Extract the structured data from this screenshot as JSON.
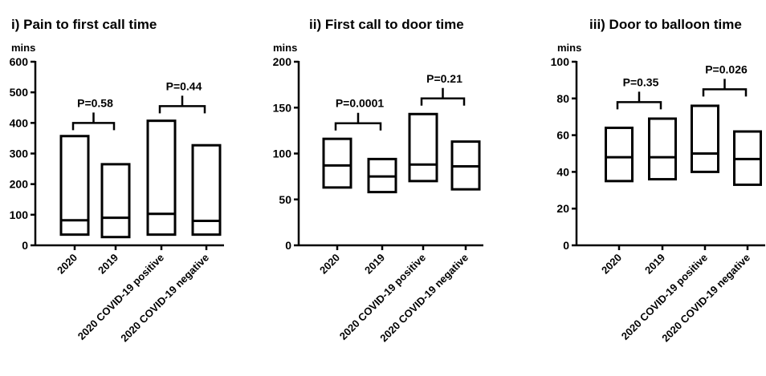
{
  "chart_data": [
    {
      "type": "box",
      "title": "i) Pain to first call time",
      "ylabel": "mins",
      "ylim": [
        0,
        600
      ],
      "yticks": [
        "0",
        "100",
        "200",
        "300",
        "400",
        "500",
        "600"
      ],
      "categories": [
        "2020",
        "2019",
        "2020 COVID-19 positive",
        "2020 COVID-19 negative"
      ],
      "boxes": [
        {
          "q1": 35,
          "median": 82,
          "q3": 357
        },
        {
          "q1": 27,
          "median": 90,
          "q3": 265
        },
        {
          "q1": 35,
          "median": 103,
          "q3": 407
        },
        {
          "q1": 35,
          "median": 80,
          "q3": 327
        }
      ],
      "annotations": [
        {
          "text": "P=0.58",
          "between": [
            0,
            1
          ],
          "bracket_y": 400
        },
        {
          "text": "P=0.44",
          "between": [
            2,
            3
          ],
          "bracket_y": 455
        }
      ]
    },
    {
      "type": "box",
      "title": "ii) First call to door time",
      "ylabel": "mins",
      "ylim": [
        0,
        200
      ],
      "yticks": [
        "0",
        "50",
        "100",
        "150",
        "200"
      ],
      "categories": [
        "2020",
        "2019",
        "2020 COVID-19 positive",
        "2020 COVID-19 negative"
      ],
      "boxes": [
        {
          "q1": 63,
          "median": 87,
          "q3": 116
        },
        {
          "q1": 58,
          "median": 75,
          "q3": 94
        },
        {
          "q1": 70,
          "median": 88,
          "q3": 143
        },
        {
          "q1": 61,
          "median": 86,
          "q3": 113
        }
      ],
      "annotations": [
        {
          "text": "P=0.0001",
          "between": [
            0,
            1
          ],
          "bracket_y": 133
        },
        {
          "text": "P=0.21",
          "between": [
            2,
            3
          ],
          "bracket_y": 160
        }
      ]
    },
    {
      "type": "box",
      "title": "iii) Door to balloon time",
      "ylabel": "mins",
      "ylim": [
        0,
        100
      ],
      "yticks": [
        "0",
        "20",
        "40",
        "60",
        "80",
        "100"
      ],
      "categories": [
        "2020",
        "2019",
        "2020 COVID-19 positive",
        "2020 COVID-19 negative"
      ],
      "boxes": [
        {
          "q1": 35,
          "median": 48,
          "q3": 64
        },
        {
          "q1": 36,
          "median": 48,
          "q3": 69
        },
        {
          "q1": 40,
          "median": 50,
          "q3": 76
        },
        {
          "q1": 33,
          "median": 47,
          "q3": 62
        }
      ],
      "annotations": [
        {
          "text": "P=0.35",
          "between": [
            0,
            1
          ],
          "bracket_y": 78
        },
        {
          "text": "P=0.026",
          "between": [
            2,
            3
          ],
          "bracket_y": 85
        }
      ]
    }
  ],
  "colors": {
    "ink": "#000000",
    "background": "#ffffff"
  }
}
